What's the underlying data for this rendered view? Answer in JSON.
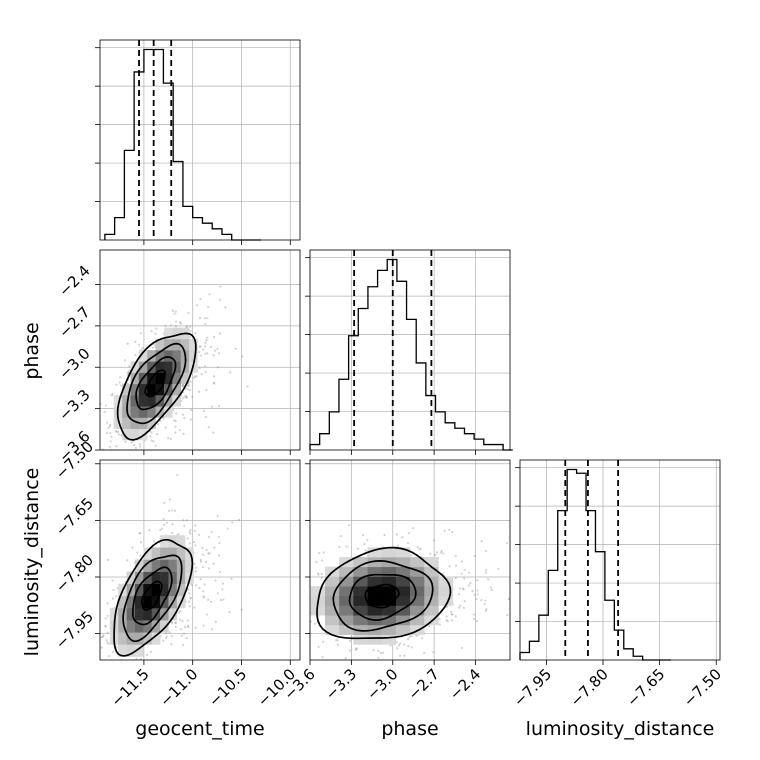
{
  "chart_data": {
    "type": "corner",
    "parameters": [
      "geocent_time",
      "phase",
      "luminosity_distance"
    ],
    "axis_labels": {
      "x": [
        "geocent_time",
        "phase",
        "luminosity_distance"
      ],
      "y": [
        "phase",
        "luminosity_distance"
      ]
    },
    "ranges": {
      "geocent_time": [
        -11.95,
        -9.9
      ],
      "phase": [
        -3.6,
        -2.15
      ],
      "luminosity_distance": [
        -8.02,
        -7.49
      ]
    },
    "ticks": {
      "geocent_time": {
        "values": [
          -11.5,
          -11.0,
          -10.5,
          -10.0
        ],
        "labels": [
          "−11.5",
          "−11.0",
          "−10.5",
          "−10.0"
        ]
      },
      "phase": {
        "values": [
          -3.6,
          -3.3,
          -3.0,
          -2.7,
          -2.4
        ],
        "labels": [
          "−3.6",
          "−3.3",
          "−3.0",
          "−2.7",
          "−2.4"
        ]
      },
      "luminosity_distance": {
        "values": [
          -7.95,
          -7.8,
          -7.65,
          -7.5
        ],
        "labels": [
          "−7.95",
          "−7.80",
          "−7.65",
          "−7.50"
        ]
      }
    },
    "grid": true,
    "histograms": [
      {
        "parameter": "geocent_time",
        "bins": [
          -11.9,
          -11.8,
          -11.7,
          -11.6,
          -11.5,
          -11.4,
          -11.3,
          -11.2,
          -11.1,
          -11.0,
          -10.9,
          -10.8,
          -10.7,
          -10.6,
          -10.5,
          -10.4,
          -10.3
        ],
        "counts": [
          1,
          4,
          16,
          30,
          34,
          34,
          28,
          14,
          6,
          4,
          3,
          2,
          1,
          0,
          0,
          0
        ],
        "quantiles": [
          -11.55,
          -11.4,
          -11.22
        ]
      },
      {
        "parameter": "phase",
        "bins": [
          -3.6,
          -3.53,
          -3.46,
          -3.39,
          -3.32,
          -3.25,
          -3.18,
          -3.11,
          -3.04,
          -2.97,
          -2.9,
          -2.83,
          -2.76,
          -2.69,
          -2.62,
          -2.55,
          -2.48,
          -2.41,
          -2.34,
          -2.27,
          -2.2,
          -2.13
        ],
        "counts": [
          1,
          3,
          7,
          13,
          21,
          26,
          30,
          33,
          35,
          31,
          24,
          16,
          10,
          7,
          5,
          4,
          3,
          2,
          1,
          1,
          0
        ],
        "quantiles": [
          -3.28,
          -3.0,
          -2.72
        ]
      },
      {
        "parameter": "luminosity_distance",
        "bins": [
          -8.02,
          -7.995,
          -7.97,
          -7.945,
          -7.92,
          -7.895,
          -7.87,
          -7.845,
          -7.82,
          -7.795,
          -7.77,
          -7.745,
          -7.72,
          -7.695,
          -7.67,
          -7.645,
          -7.62
        ],
        "counts": [
          2,
          5,
          12,
          24,
          40,
          51,
          50,
          40,
          29,
          16,
          8,
          3,
          1,
          0,
          0,
          0
        ],
        "quantiles": [
          -7.9,
          -7.84,
          -7.76
        ]
      }
    ],
    "joint": [
      {
        "x": "geocent_time",
        "y": "phase",
        "mean": [
          -11.38,
          -3.12
        ],
        "sigma": [
          0.2,
          0.19
        ],
        "rho": 0.62,
        "sample_extent_x": [
          -11.8,
          -10.1
        ],
        "sample_extent_y": [
          -3.5,
          -2.3
        ],
        "contour_levels_sigma": [
          0.5,
          1.0,
          1.5,
          2.0
        ]
      },
      {
        "x": "geocent_time",
        "y": "luminosity_distance",
        "mean": [
          -11.42,
          -7.85
        ],
        "sigma": [
          0.2,
          0.075
        ],
        "rho": 0.58,
        "sample_extent_x": [
          -11.85,
          -10.2
        ],
        "sample_extent_y": [
          -8.0,
          -7.55
        ],
        "contour_levels_sigma": [
          0.5,
          1.0,
          1.5,
          2.0
        ]
      },
      {
        "x": "phase",
        "y": "luminosity_distance",
        "mean": [
          -3.08,
          -7.85
        ],
        "sigma": [
          0.24,
          0.06
        ],
        "rho": 0.15,
        "sample_extent_x": [
          -3.6,
          -2.2
        ],
        "sample_extent_y": [
          -8.0,
          -7.62
        ],
        "contour_levels_sigma": [
          0.5,
          1.0,
          1.5,
          2.0
        ]
      }
    ],
    "colors": {
      "line": "#000000",
      "grid": "#b0b0b0",
      "points": "#7f7f7f"
    }
  }
}
